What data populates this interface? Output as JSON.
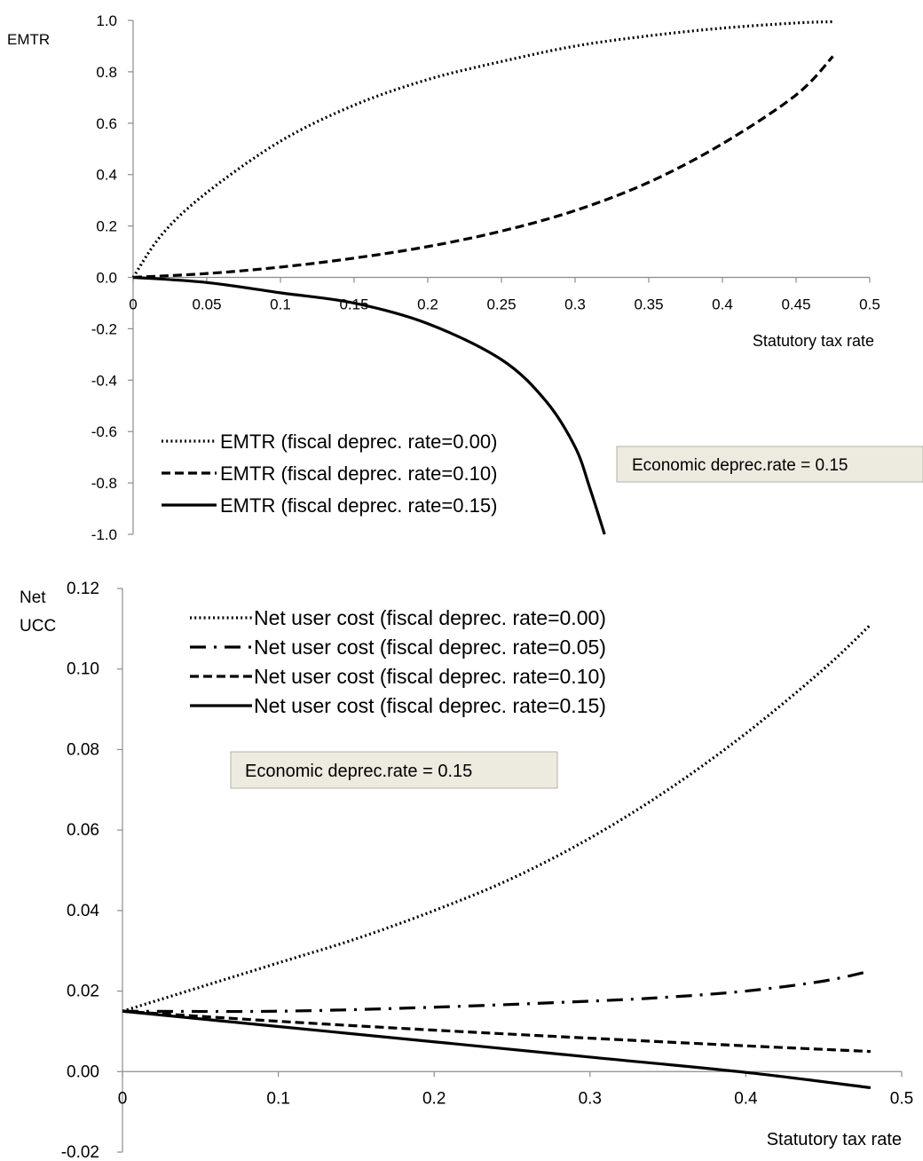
{
  "chart_data": [
    {
      "type": "line",
      "title": "",
      "xlabel": "Statutory tax rate",
      "ylabel": "EMTR",
      "xlim": [
        0,
        0.5
      ],
      "ylim": [
        -1.0,
        1.0
      ],
      "x_ticks": [
        0,
        0.05,
        0.1,
        0.15,
        0.2,
        0.25,
        0.3,
        0.35,
        0.4,
        0.45,
        0.5
      ],
      "x_tick_labels": [
        "0",
        "0.05",
        "0.1",
        "0.15",
        "0.2",
        "0.25",
        "0.3",
        "0.35",
        "0.4",
        "0.45",
        "0.5"
      ],
      "y_ticks": [
        1.0,
        0.8,
        0.6,
        0.4,
        0.2,
        0.0,
        -0.2,
        -0.4,
        -0.6,
        -0.8,
        -1.0
      ],
      "y_tick_labels": [
        "1.0",
        "0.8",
        "0.6",
        "0.4",
        "0.2",
        "0.0",
        "-0.2",
        "-0.4",
        "-0.6",
        "-0.8",
        "-1.0"
      ],
      "grid": false,
      "legend_position": "bottom-left",
      "annotation": "Economic deprec.rate = 0.15",
      "series": [
        {
          "name": "EMTR (fiscal deprec. rate=0.00)",
          "style": "dotted",
          "x": [
            0,
            0.02,
            0.05,
            0.1,
            0.15,
            0.2,
            0.25,
            0.3,
            0.35,
            0.4,
            0.45,
            0.475
          ],
          "y": [
            0,
            0.17,
            0.33,
            0.53,
            0.67,
            0.77,
            0.84,
            0.9,
            0.94,
            0.97,
            0.99,
            0.995
          ]
        },
        {
          "name": "EMTR (fiscal deprec. rate=0.10)",
          "style": "dashed",
          "x": [
            0,
            0.05,
            0.1,
            0.15,
            0.2,
            0.25,
            0.3,
            0.35,
            0.4,
            0.45,
            0.475
          ],
          "y": [
            0,
            0.015,
            0.04,
            0.075,
            0.12,
            0.18,
            0.26,
            0.37,
            0.52,
            0.71,
            0.86
          ]
        },
        {
          "name": "EMTR (fiscal deprec. rate=0.15)",
          "style": "solid",
          "x": [
            0,
            0.05,
            0.1,
            0.15,
            0.2,
            0.25,
            0.28,
            0.3,
            0.31,
            0.32
          ],
          "y": [
            0,
            -0.02,
            -0.06,
            -0.1,
            -0.18,
            -0.32,
            -0.48,
            -0.66,
            -0.82,
            -1.0
          ]
        }
      ]
    },
    {
      "type": "line",
      "title": "",
      "xlabel": "Statutory tax rate",
      "ylabel": "Net UCC",
      "xlim": [
        0,
        0.5
      ],
      "ylim": [
        -0.02,
        0.12
      ],
      "x_ticks": [
        0,
        0.1,
        0.2,
        0.3,
        0.4,
        0.5
      ],
      "x_tick_labels": [
        "0",
        "0.1",
        "0.2",
        "0.3",
        "0.4",
        "0.5"
      ],
      "y_ticks": [
        0.12,
        0.1,
        0.08,
        0.06,
        0.04,
        0.02,
        0.0,
        -0.02
      ],
      "y_tick_labels": [
        "0.12",
        "0.10",
        "0.08",
        "0.06",
        "0.04",
        "0.02",
        "0.00",
        "-0.02"
      ],
      "grid": false,
      "legend_position": "top-left",
      "annotation": "Economic deprec.rate = 0.15",
      "series": [
        {
          "name": "Net user cost (fiscal deprec. rate=0.00)",
          "style": "dotted",
          "x": [
            0,
            0.05,
            0.1,
            0.15,
            0.2,
            0.25,
            0.3,
            0.35,
            0.4,
            0.45,
            0.48
          ],
          "y": [
            0.015,
            0.021,
            0.027,
            0.033,
            0.04,
            0.048,
            0.058,
            0.07,
            0.084,
            0.1,
            0.111
          ]
        },
        {
          "name": "Net user cost (fiscal deprec. rate=0.05)",
          "style": "dashdot",
          "x": [
            0,
            0.1,
            0.2,
            0.3,
            0.35,
            0.4,
            0.45,
            0.48
          ],
          "y": [
            0.015,
            0.015,
            0.016,
            0.0175,
            0.0185,
            0.02,
            0.0225,
            0.025
          ]
        },
        {
          "name": "Net user cost (fiscal deprec. rate=0.10)",
          "style": "dashed",
          "x": [
            0,
            0.1,
            0.2,
            0.3,
            0.4,
            0.48
          ],
          "y": [
            0.015,
            0.0125,
            0.0103,
            0.0083,
            0.0064,
            0.005
          ]
        },
        {
          "name": "Net user cost (fiscal deprec. rate=0.15)",
          "style": "solid",
          "x": [
            0,
            0.1,
            0.2,
            0.3,
            0.4,
            0.48
          ],
          "y": [
            0.015,
            0.0112,
            0.0074,
            0.0036,
            -0.0002,
            -0.004
          ]
        }
      ]
    }
  ]
}
